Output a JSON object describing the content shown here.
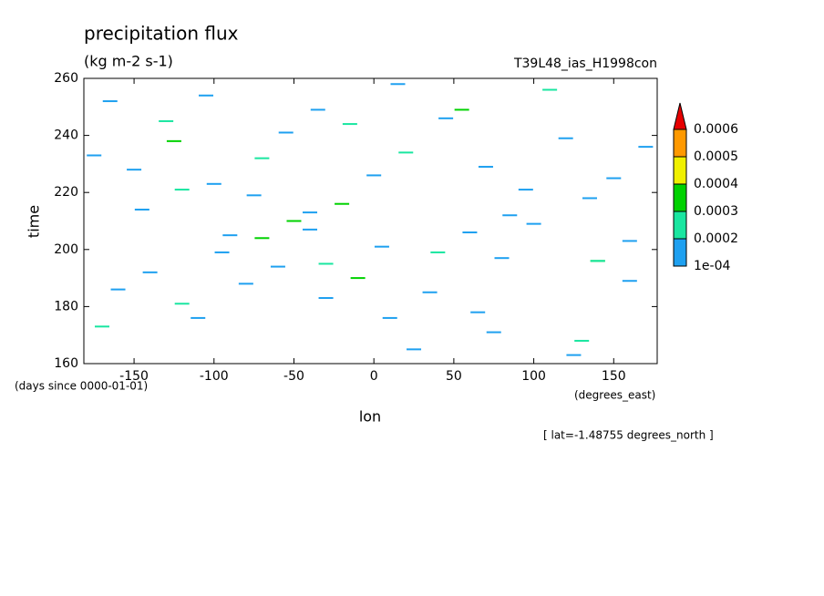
{
  "chart_data": {
    "type": "contour",
    "title": "precipitation flux",
    "subtitle": "(kg m-2 s-1)",
    "run_label": "T39L48_ias_H1998con",
    "xlabel": "lon",
    "ylabel": "time",
    "ylabel_units": "(days since 0000-01-01)",
    "xlabel_units": "(degrees_east)",
    "annotation": "[ lat=-1.48755 degrees_north ]",
    "xlim": [
      -181.4,
      177.2
    ],
    "ylim": [
      160,
      260
    ],
    "xticks": [
      -150,
      -100,
      -50,
      0,
      50,
      100,
      150
    ],
    "yticks": [
      160,
      180,
      200,
      220,
      240,
      260
    ],
    "levels": [
      {
        "value": 0.0001,
        "label": "1e-04"
      },
      0.0002,
      0.0003,
      0.0004,
      0.0005,
      0.0006
    ],
    "colors": [
      "#1ea0f0",
      "#19e6a0",
      "#00d200",
      "#f0f000",
      "#ff9900",
      "#e60000"
    ],
    "cells": {
      "lon": [
        -170,
        -160,
        -140,
        -120,
        -110,
        -95,
        -80,
        -60,
        -40,
        -30,
        -10,
        10,
        25,
        40,
        60,
        65,
        80,
        100,
        130,
        140,
        160,
        -175,
        -150,
        -125,
        -100,
        -75,
        -55,
        -35,
        -20,
        0,
        20,
        45,
        70,
        95,
        120,
        150,
        170,
        -165,
        -130,
        -105,
        -70,
        -40,
        -15,
        15,
        55,
        85,
        110,
        135,
        160,
        -145,
        -90,
        -50,
        5,
        35,
        75,
        125,
        -120,
        -70,
        -30,
        140
      ],
      "time": [
        173,
        186,
        192,
        181,
        176,
        199,
        188,
        194,
        207,
        183,
        190,
        176,
        165,
        199,
        206,
        178,
        197,
        209,
        168,
        196,
        189,
        233,
        228,
        238,
        223,
        219,
        241,
        249,
        216,
        226,
        234,
        246,
        229,
        221,
        239,
        225,
        236,
        252,
        245,
        254,
        232,
        213,
        244,
        258,
        249,
        212,
        256,
        218,
        203,
        214,
        205,
        210,
        201,
        185,
        171,
        163,
        221,
        204,
        195,
        196
      ],
      "values": [
        0.00025,
        0.00015,
        0.00015,
        0.00025,
        0.00015,
        0.00015,
        0.00015,
        0.00015,
        0.00015,
        0.00015,
        0.00035,
        0.00015,
        0.00015,
        0.00025,
        0.00015,
        0.00015,
        0.00015,
        0.00015,
        0.00025,
        0.00035,
        0.00015,
        0.00015,
        0.00015,
        0.00035,
        0.00015,
        0.00015,
        0.00015,
        0.00015,
        0.00035,
        0.00015,
        0.00025,
        0.00015,
        0.00015,
        0.00015,
        0.00015,
        0.00015,
        0.00015,
        0.00015,
        0.00025,
        0.00015,
        0.00025,
        0.00015,
        0.00025,
        0.00015,
        0.00035,
        0.00015,
        0.00025,
        0.00015,
        0.00015,
        0.00015,
        0.00015,
        0.00035,
        0.00015,
        0.00015,
        0.00015,
        0.00015,
        0.00025,
        0.00035,
        0.00025,
        0.00025
      ]
    }
  }
}
